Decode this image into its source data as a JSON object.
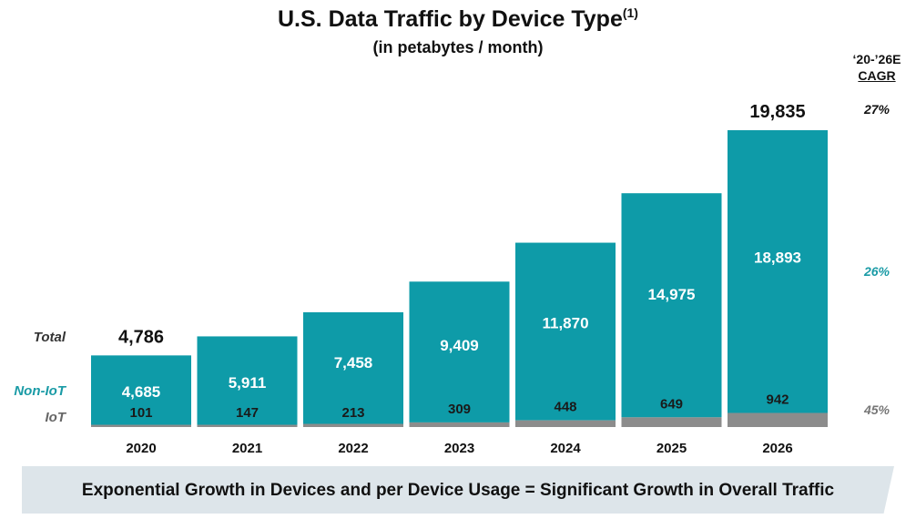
{
  "header": {
    "title": "U.S. Data Traffic by Device Type",
    "title_superscript": "(1)",
    "subtitle": "(in petabytes / month)"
  },
  "cagr": {
    "heading_line1": "‘20-’26E",
    "heading_line2": "CAGR",
    "total": "27%",
    "non_iot": "26%",
    "iot": "45%"
  },
  "row_labels": {
    "total": "Total",
    "non_iot": "Non-IoT",
    "iot": "IoT"
  },
  "colors": {
    "non_iot": "#0e9ba8",
    "iot": "#8c8c8c",
    "non_iot_label": "#1a9ba6",
    "iot_label": "#777777"
  },
  "chart_data": {
    "type": "bar",
    "stacked": true,
    "categories": [
      "2020",
      "2021",
      "2022",
      "2023",
      "2024",
      "2025",
      "2026"
    ],
    "series": [
      {
        "name": "IoT",
        "values": [
          101,
          147,
          213,
          309,
          448,
          649,
          942
        ]
      },
      {
        "name": "Non-IoT",
        "values": [
          4685,
          5911,
          7458,
          9409,
          11870,
          14975,
          18893
        ]
      }
    ],
    "totals": [
      4786,
      6058,
      7671,
      9718,
      12318,
      15624,
      19835
    ],
    "value_labels": {
      "iot": [
        "101",
        "147",
        "213",
        "309",
        "448",
        "649",
        "942"
      ],
      "non_iot": [
        "4,685",
        "5,911",
        "7,458",
        "9,409",
        "11,870",
        "14,975",
        "18,893"
      ],
      "total": [
        "4,786",
        "",
        "",
        "",
        "",
        "",
        "19,835"
      ]
    },
    "ylim": [
      0,
      19835
    ],
    "grid": false,
    "legend": "row labels at left"
  },
  "footer": {
    "banner": "Exponential Growth in Devices and per Device Usage = Significant Growth in Overall Traffic"
  }
}
